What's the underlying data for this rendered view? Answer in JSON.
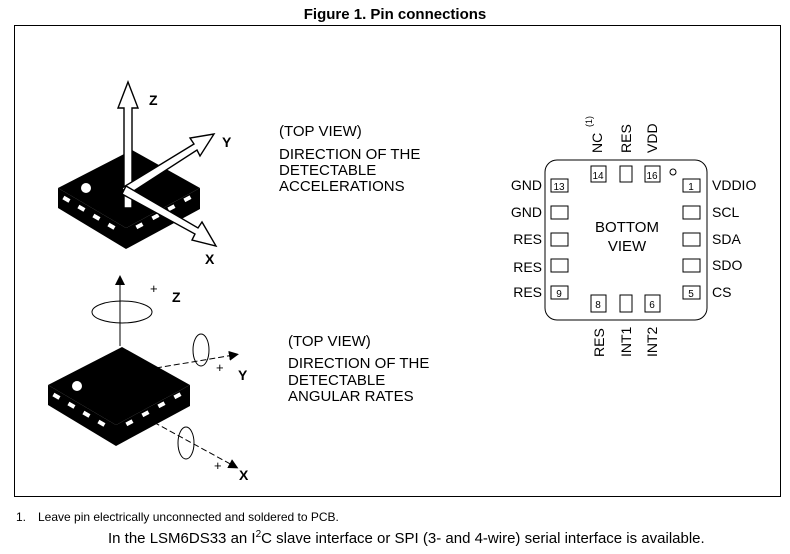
{
  "figure": {
    "title": "Figure 1. Pin connections"
  },
  "accel": {
    "view": "(TOP VIEW)",
    "line1": "DIRECTION OF THE",
    "line2": "DETECTABLE",
    "line3": "ACCELERATIONS",
    "axes": {
      "z": "Z",
      "y": "Y",
      "x": "X"
    }
  },
  "gyro": {
    "view": "(TOP VIEW)",
    "line1": "DIRECTION OF THE",
    "line2": "DETECTABLE",
    "line3": "ANGULAR RATES",
    "axes": {
      "z": "Z",
      "y": "Y",
      "x": "X"
    },
    "plus": "+"
  },
  "package": {
    "center_line1": "BOTTOM",
    "center_line2": "VIEW",
    "top_labels": {
      "nc": "NC",
      "nc_note": "(1)",
      "res": "RES",
      "vdd": "VDD"
    },
    "top_pins": {
      "p14": "14",
      "p16": "16"
    },
    "left_labels": [
      "GND",
      "GND",
      "RES",
      "RES",
      "RES"
    ],
    "left_pins": {
      "p13": "13",
      "p9": "9"
    },
    "right_labels": [
      "VDDIO",
      "SCL",
      "SDA",
      "SDO",
      "CS"
    ],
    "right_pins": {
      "p1": "1",
      "p5": "5"
    },
    "bottom_labels": {
      "res": "RES",
      "int1": "INT1",
      "int2": "INT2"
    },
    "bottom_pins": {
      "p8": "8",
      "p6": "6"
    }
  },
  "footnote": {
    "number": "1.",
    "text": "Leave pin electrically unconnected and soldered to PCB."
  },
  "note": {
    "before": "In the LSM6DS33 an I",
    "sup": "2",
    "after": "C slave interface or SPI (3- and 4-wire) serial interface is available."
  }
}
